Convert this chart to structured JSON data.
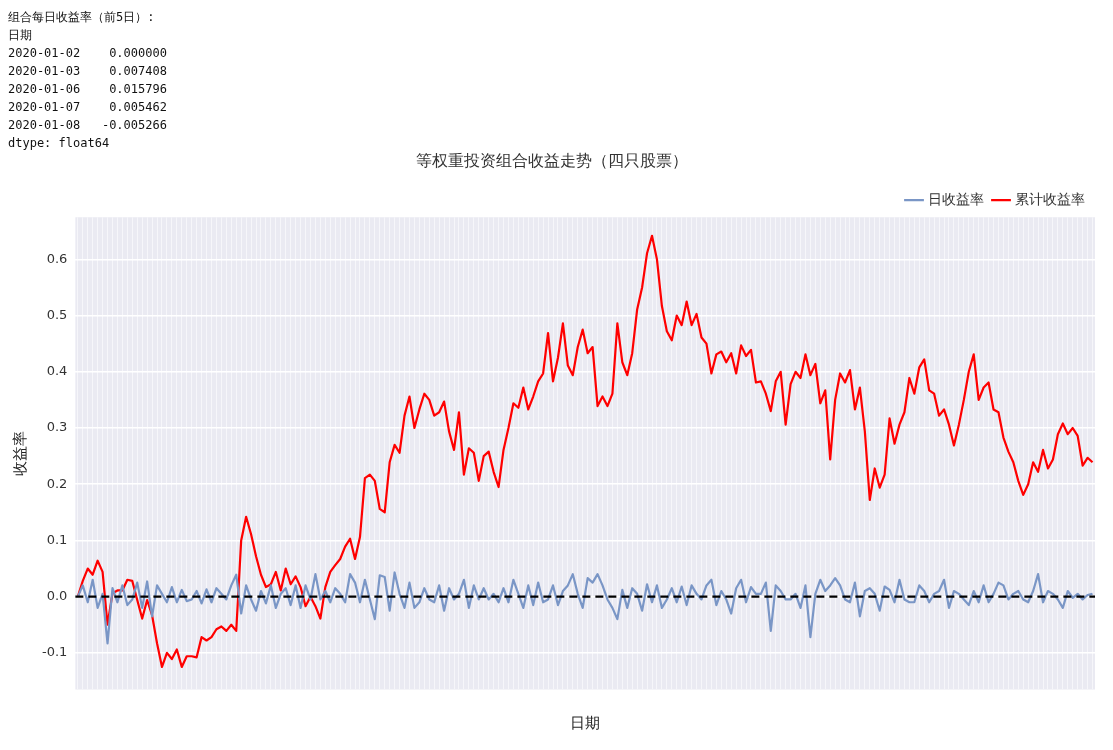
{
  "chart_data": {
    "type": "line",
    "title": "等权重投资组合收益走势（四只股票）",
    "xlabel": "日期",
    "ylabel": "收益率",
    "annotations": [
      "组合每日收益率（前5日）:",
      "日期",
      "2020-01-02    0.000000",
      "2020-01-03    0.007408",
      "2020-01-06    0.015796",
      "2020-01-07    0.005462",
      "2020-01-08   -0.005266",
      "dtype: float64"
    ],
    "categories": [
      null,
      null,
      null,
      null,
      null,
      null,
      null,
      null,
      null,
      null,
      null,
      null,
      null,
      null,
      null,
      null,
      null,
      null,
      null,
      null,
      null,
      null,
      null,
      null,
      null,
      null,
      null,
      null,
      null,
      null,
      null,
      null,
      null,
      null,
      null,
      null,
      null,
      null,
      null,
      null,
      null,
      null,
      null,
      null,
      null,
      null,
      null,
      null,
      null,
      null,
      null,
      null,
      null,
      null,
      null,
      null,
      null,
      null,
      null,
      null,
      null,
      null,
      null,
      null,
      null,
      null,
      null,
      null,
      null,
      null,
      null,
      null,
      null,
      null,
      null,
      null,
      null,
      null,
      null,
      null,
      null,
      null,
      null,
      null,
      null,
      null,
      null,
      null,
      null,
      null,
      null,
      null,
      null,
      null,
      null,
      null,
      null,
      null,
      null,
      null,
      null,
      null,
      null,
      null,
      null,
      null,
      null,
      null,
      null,
      null,
      null,
      null,
      null,
      null,
      null,
      null,
      null,
      null,
      null,
      null,
      null,
      null,
      null,
      null,
      null,
      null,
      null,
      null,
      null,
      null,
      null,
      null,
      null,
      null,
      null,
      null,
      null,
      null,
      null,
      null,
      null,
      null,
      null,
      null,
      null,
      null,
      null,
      null,
      null,
      null,
      null,
      null,
      null,
      null,
      null,
      null,
      null,
      null,
      null,
      null,
      null,
      null,
      null,
      null,
      null,
      null,
      null,
      null,
      null,
      null,
      null,
      null,
      null,
      null,
      null,
      null,
      null,
      null,
      null,
      null,
      null,
      null,
      null,
      null,
      null,
      null,
      null,
      null,
      null,
      null,
      null,
      null,
      null,
      null,
      null,
      null,
      null,
      null,
      null,
      null,
      null,
      null,
      null,
      null,
      null,
      null
    ],
    "ylim": [
      -0.165,
      0.675
    ],
    "yticks": [
      -0.1,
      {
        "value": 0,
        "label": "0.0"
      },
      0.1,
      0.2,
      0.3,
      0.4,
      0.5,
      0.6
    ],
    "grid": true,
    "legend": "top right",
    "line_style": "solid",
    "ref_lines": [
      {
        "axis": "y",
        "value": 0,
        "color": "#000000",
        "line_style": "dashed"
      }
    ],
    "series": [
      {
        "name": "日收益率",
        "color": "#7a96c6",
        "values": [
          0,
          0.02,
          -0.01,
          0.03,
          -0.02,
          0.005,
          -0.083,
          0.015,
          -0.01,
          0.02,
          -0.015,
          -0.005,
          0.025,
          -0.02,
          0.027,
          -0.035,
          0.02,
          0.005,
          -0.01,
          0.017,
          -0.01,
          0.012,
          -0.008,
          -0.005,
          0.01,
          -0.012,
          0.013,
          -0.01,
          0.015,
          0.005,
          -0.005,
          0.02,
          0.039,
          -0.03,
          0.02,
          -0.005,
          -0.025,
          0.01,
          -0.012,
          0.02,
          -0.02,
          0.005,
          0.015,
          -0.015,
          0.02,
          -0.02,
          0.02,
          -0.005,
          0.04,
          -0.005,
          0.01,
          -0.01,
          0.015,
          0.005,
          -0.01,
          0.04,
          0.025,
          -0.01,
          0.03,
          -0.005,
          -0.04,
          0.038,
          0.035,
          -0.025,
          0.043,
          0.005,
          -0.02,
          0.025,
          -0.02,
          -0.01,
          0.015,
          -0.005,
          -0.01,
          0.02,
          -0.025,
          0.015,
          -0.005,
          0.005,
          0.03,
          -0.02,
          0.02,
          -0.005,
          0.015,
          -0.005,
          0.005,
          -0.01,
          0.015,
          -0.01,
          0.03,
          0.005,
          -0.02,
          0.02,
          -0.015,
          0.025,
          -0.01,
          -0.005,
          0.02,
          -0.015,
          0.01,
          0.02,
          0.04,
          0.005,
          -0.02,
          0.033,
          0.025,
          0.04,
          0.02,
          -0.005,
          -0.02,
          -0.04,
          0.012,
          -0.02,
          0.015,
          0.005,
          -0.025,
          0.022,
          -0.01,
          0.02,
          -0.02,
          -0.005,
          0.015,
          -0.01,
          0.018,
          -0.015,
          0.02,
          0.005,
          -0.005,
          0.02,
          0.03,
          -0.015,
          0.01,
          -0.005,
          -0.03,
          0.015,
          0.03,
          -0.01,
          0.017,
          0.005,
          0.005,
          0.025,
          -0.061,
          0.02,
          0.01,
          -0.005,
          -0.005,
          0.005,
          -0.02,
          0.02,
          -0.072,
          0.005,
          0.03,
          0.01,
          0.02,
          0.033,
          0.02,
          -0.005,
          -0.01,
          0.025,
          -0.035,
          0.01,
          0.015,
          0.005,
          -0.025,
          0.018,
          0.012,
          -0.01,
          0.03,
          -0.005,
          -0.01,
          -0.01,
          0.02,
          0.01,
          -0.01,
          0.005,
          0.01,
          0.03,
          -0.02,
          0.01,
          0.005,
          -0.005,
          -0.015,
          0.01,
          -0.01,
          0.02,
          -0.01,
          0.005,
          0.025,
          0.02,
          -0.005,
          0.005,
          0.01,
          -0.005,
          -0.01,
          0.01,
          0.04,
          -0.01,
          0.01,
          0.005,
          -0.005,
          -0.02,
          0.01,
          -0.002,
          0.005,
          -0.005,
          0.003,
          0.005
        ]
      },
      {
        "name": "累计收益率",
        "color": "#ff0000",
        "values": [
          0,
          0.028,
          0.05,
          0.039,
          0.064,
          0.044,
          -0.05,
          0.006,
          0.011,
          0.011,
          0.03,
          0.028,
          -0.006,
          -0.039,
          -0.006,
          -0.033,
          -0.083,
          -0.125,
          -0.1,
          -0.111,
          -0.094,
          -0.125,
          -0.106,
          -0.106,
          -0.108,
          -0.072,
          -0.078,
          -0.072,
          -0.058,
          -0.053,
          -0.061,
          -0.05,
          -0.061,
          0.1,
          0.142,
          0.111,
          0.072,
          0.039,
          0.017,
          0.022,
          0.044,
          0.011,
          0.05,
          0.022,
          0.036,
          0.017,
          -0.017,
          0,
          -0.017,
          -0.039,
          0.017,
          0.044,
          0.056,
          0.067,
          0.089,
          0.103,
          0.067,
          0.106,
          0.211,
          0.217,
          0.206,
          0.156,
          0.15,
          0.239,
          0.27,
          0.256,
          0.322,
          0.356,
          0.3,
          0.333,
          0.361,
          0.35,
          0.322,
          0.328,
          0.347,
          0.294,
          0.261,
          0.328,
          0.217,
          0.264,
          0.256,
          0.206,
          0.25,
          0.258,
          0.222,
          0.195,
          0.261,
          0.3,
          0.344,
          0.336,
          0.372,
          0.333,
          0.356,
          0.383,
          0.397,
          0.469,
          0.383,
          0.425,
          0.486,
          0.411,
          0.394,
          0.444,
          0.475,
          0.433,
          0.444,
          0.339,
          0.356,
          0.339,
          0.361,
          0.486,
          0.417,
          0.394,
          0.433,
          0.511,
          0.55,
          0.611,
          0.642,
          0.6,
          0.517,
          0.472,
          0.456,
          0.5,
          0.483,
          0.525,
          0.483,
          0.503,
          0.461,
          0.45,
          0.397,
          0.431,
          0.436,
          0.417,
          0.433,
          0.397,
          0.447,
          0.428,
          0.439,
          0.381,
          0.383,
          0.361,
          0.33,
          0.383,
          0.4,
          0.306,
          0.378,
          0.4,
          0.389,
          0.431,
          0.394,
          0.414,
          0.344,
          0.367,
          0.244,
          0.35,
          0.397,
          0.381,
          0.403,
          0.333,
          0.372,
          0.294,
          0.172,
          0.228,
          0.194,
          0.217,
          0.317,
          0.272,
          0.306,
          0.328,
          0.389,
          0.361,
          0.408,
          0.422,
          0.367,
          0.361,
          0.322,
          0.333,
          0.306,
          0.269,
          0.306,
          0.35,
          0.4,
          0.431,
          0.35,
          0.372,
          0.381,
          0.333,
          0.328,
          0.283,
          0.258,
          0.239,
          0.206,
          0.181,
          0.2,
          0.239,
          0.222,
          0.261,
          0.228,
          0.244,
          0.289,
          0.308,
          0.289,
          0.3,
          0.286,
          0.233,
          0.247,
          0.239
        ]
      }
    ]
  }
}
